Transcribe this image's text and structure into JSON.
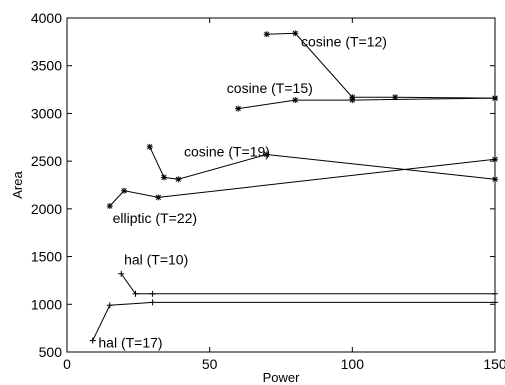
{
  "chart_data": {
    "type": "line",
    "xlabel": "Power",
    "ylabel": "Area",
    "xlim": [
      0,
      150
    ],
    "ylim": [
      500,
      4000
    ],
    "xticks": [
      0,
      50,
      100,
      150
    ],
    "yticks": [
      500,
      1000,
      1500,
      2000,
      2500,
      3000,
      3500,
      4000
    ],
    "grid": false,
    "series": [
      {
        "marker": "*",
        "x": [
          70,
          80,
          100,
          115,
          150
        ],
        "y": [
          3830,
          3840,
          3170,
          3170,
          3160
        ]
      },
      {
        "marker": "*",
        "x": [
          60,
          80,
          100,
          150
        ],
        "y": [
          3050,
          3140,
          3140,
          3160
        ]
      },
      {
        "marker": "*",
        "x": [
          29,
          34,
          39,
          70,
          150
        ],
        "y": [
          2650,
          2330,
          2310,
          2570,
          2310
        ]
      },
      {
        "marker": "*",
        "x": [
          15,
          20,
          32,
          150
        ],
        "y": [
          2030,
          2190,
          2120,
          2520
        ]
      },
      {
        "marker": "+",
        "x": [
          19,
          24,
          30,
          150
        ],
        "y": [
          1320,
          1110,
          1110,
          1110
        ]
      },
      {
        "marker": "+",
        "x": [
          9,
          15,
          30,
          150
        ],
        "y": [
          620,
          990,
          1020,
          1020
        ]
      }
    ],
    "annotations": [
      {
        "text": "cosine (T=12)",
        "x": 82,
        "y": 3700
      },
      {
        "text": "cosine (T=15)",
        "x": 56,
        "y": 3215
      },
      {
        "text": "cosine (T=19)",
        "x": 41,
        "y": 2550
      },
      {
        "text": "elliptic (T=22)",
        "x": 16,
        "y": 1850
      },
      {
        "text": "hal (T=10)",
        "x": 20,
        "y": 1415
      },
      {
        "text": "hal (T=17)",
        "x": 11,
        "y": 545
      }
    ]
  }
}
